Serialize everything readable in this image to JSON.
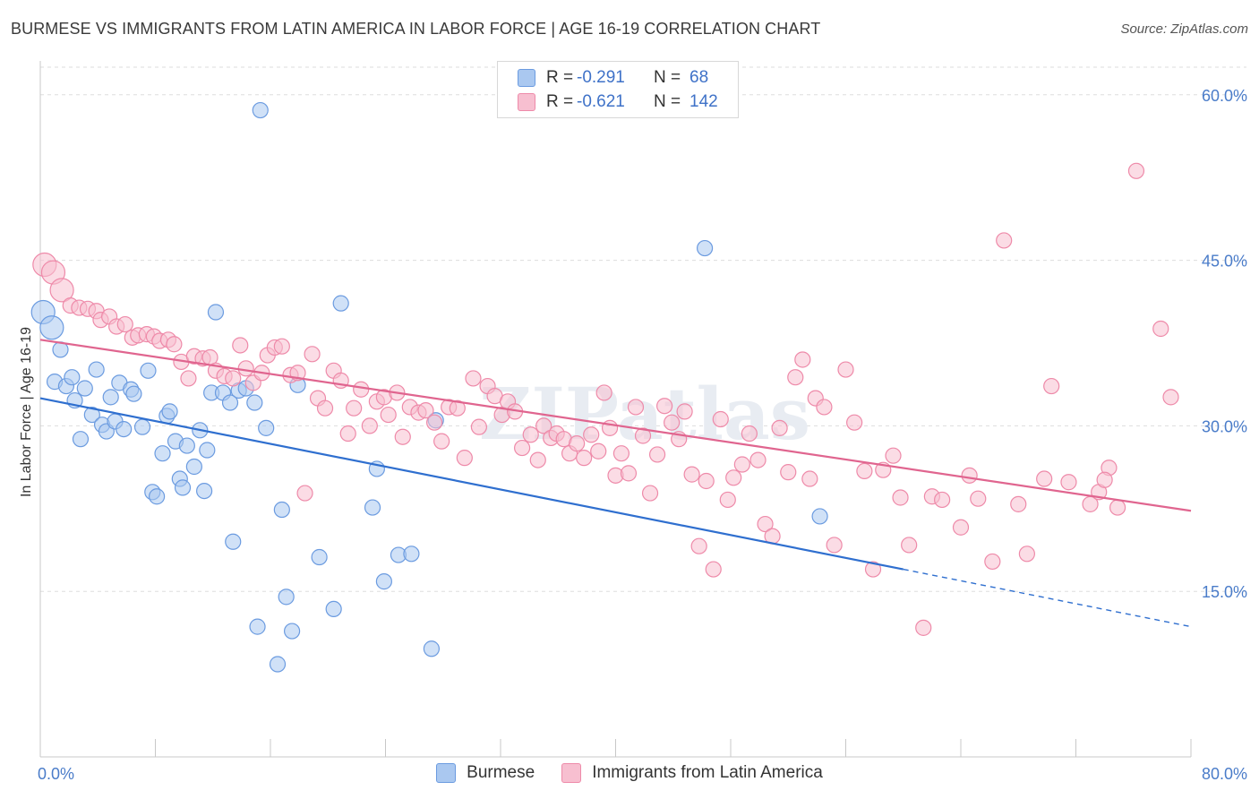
{
  "title": "BURMESE VS IMMIGRANTS FROM LATIN AMERICA IN LABOR FORCE | AGE 16-19 CORRELATION CHART",
  "source": "Source: ZipAtlas.com",
  "watermark": "ZIPatlas",
  "colors": {
    "blue_fill": "#aac8f0",
    "blue_stroke": "#6b9be0",
    "blue_line": "#2f6fcf",
    "pink_fill": "#f7bfd0",
    "pink_stroke": "#ee8aa9",
    "pink_line": "#e0658f",
    "axis_text": "#4a7cc9",
    "grid": "#dddddd"
  },
  "legend": {
    "r_label": "R =",
    "n_label": "N =",
    "entries": [
      {
        "r": "-0.291",
        "n": "68"
      },
      {
        "r": "-0.621",
        "n": "142"
      }
    ]
  },
  "chart_data": {
    "type": "scatter",
    "xlabel": "",
    "ylabel": "In Labor Force | Age 16-19",
    "xlim": [
      0,
      80
    ],
    "ylim": [
      0,
      62.5
    ],
    "x_tick_labels": [
      "0.0%",
      "80.0%"
    ],
    "y_ticks": [
      15,
      30,
      45,
      60
    ],
    "y_tick_labels": [
      "15.0%",
      "30.0%",
      "45.0%",
      "60.0%"
    ],
    "grid": "horizontal dashed",
    "legend_position": "top-center",
    "series": [
      {
        "name": "Burmese",
        "color": "blue",
        "trend": {
          "x0": 0,
          "y0": 32.5,
          "x1": 60,
          "y1": 17.0,
          "dashed_to_x": 80,
          "dashed_to_y": 11.8
        },
        "points": [
          [
            0.2,
            40.3
          ],
          [
            0.8,
            38.9
          ],
          [
            1.0,
            34.0
          ],
          [
            1.4,
            36.9
          ],
          [
            1.8,
            33.6
          ],
          [
            2.2,
            34.4
          ],
          [
            2.4,
            32.3
          ],
          [
            2.8,
            28.8
          ],
          [
            3.1,
            33.4
          ],
          [
            3.6,
            31.0
          ],
          [
            3.9,
            35.1
          ],
          [
            4.3,
            30.1
          ],
          [
            4.6,
            29.5
          ],
          [
            4.9,
            32.6
          ],
          [
            5.2,
            30.4
          ],
          [
            5.5,
            33.9
          ],
          [
            5.8,
            29.7
          ],
          [
            6.3,
            33.3
          ],
          [
            6.5,
            32.9
          ],
          [
            7.1,
            29.9
          ],
          [
            7.5,
            35.0
          ],
          [
            7.8,
            24.0
          ],
          [
            8.1,
            23.6
          ],
          [
            8.5,
            27.5
          ],
          [
            8.8,
            30.9
          ],
          [
            9.0,
            31.3
          ],
          [
            9.4,
            28.6
          ],
          [
            9.7,
            25.2
          ],
          [
            9.9,
            24.4
          ],
          [
            10.2,
            28.2
          ],
          [
            10.7,
            26.3
          ],
          [
            11.1,
            29.6
          ],
          [
            11.4,
            24.1
          ],
          [
            11.6,
            27.8
          ],
          [
            11.9,
            33.0
          ],
          [
            12.2,
            40.3
          ],
          [
            12.7,
            33.0
          ],
          [
            13.2,
            32.1
          ],
          [
            13.4,
            19.5
          ],
          [
            13.8,
            33.2
          ],
          [
            14.3,
            33.4
          ],
          [
            14.9,
            32.1
          ],
          [
            15.1,
            11.8
          ],
          [
            15.3,
            58.6
          ],
          [
            15.7,
            29.8
          ],
          [
            16.5,
            8.4
          ],
          [
            16.8,
            22.4
          ],
          [
            17.1,
            14.5
          ],
          [
            17.5,
            11.4
          ],
          [
            17.9,
            33.7
          ],
          [
            19.4,
            18.1
          ],
          [
            20.4,
            13.4
          ],
          [
            20.9,
            41.1
          ],
          [
            23.1,
            22.6
          ],
          [
            23.4,
            26.1
          ],
          [
            23.9,
            15.9
          ],
          [
            24.9,
            18.3
          ],
          [
            25.8,
            18.4
          ],
          [
            27.2,
            9.8
          ],
          [
            27.5,
            30.5
          ],
          [
            46.2,
            46.1
          ],
          [
            54.2,
            21.8
          ]
        ]
      },
      {
        "name": "Immigrants from Latin America",
        "color": "pink",
        "trend": {
          "x0": 0,
          "y0": 37.8,
          "x1": 80,
          "y1": 22.3
        },
        "points": [
          [
            0.3,
            44.6
          ],
          [
            0.9,
            43.9
          ],
          [
            1.5,
            42.3
          ],
          [
            2.1,
            40.9
          ],
          [
            2.7,
            40.7
          ],
          [
            3.3,
            40.6
          ],
          [
            3.9,
            40.4
          ],
          [
            4.2,
            39.6
          ],
          [
            4.8,
            39.9
          ],
          [
            5.3,
            39.0
          ],
          [
            5.9,
            39.2
          ],
          [
            6.4,
            38.0
          ],
          [
            6.8,
            38.2
          ],
          [
            7.4,
            38.3
          ],
          [
            7.9,
            38.1
          ],
          [
            8.3,
            37.7
          ],
          [
            8.9,
            37.8
          ],
          [
            9.3,
            37.4
          ],
          [
            9.8,
            35.8
          ],
          [
            10.3,
            34.3
          ],
          [
            10.7,
            36.3
          ],
          [
            11.3,
            36.1
          ],
          [
            11.8,
            36.2
          ],
          [
            12.2,
            35.0
          ],
          [
            12.8,
            34.5
          ],
          [
            13.4,
            34.3
          ],
          [
            13.9,
            37.3
          ],
          [
            14.3,
            35.2
          ],
          [
            14.8,
            33.9
          ],
          [
            15.4,
            34.8
          ],
          [
            15.8,
            36.4
          ],
          [
            16.3,
            37.1
          ],
          [
            16.8,
            37.2
          ],
          [
            17.4,
            34.6
          ],
          [
            17.9,
            34.8
          ],
          [
            18.4,
            23.9
          ],
          [
            18.9,
            36.5
          ],
          [
            19.3,
            32.5
          ],
          [
            19.8,
            31.6
          ],
          [
            20.4,
            35.0
          ],
          [
            20.9,
            34.1
          ],
          [
            21.4,
            29.3
          ],
          [
            21.8,
            31.6
          ],
          [
            22.3,
            33.3
          ],
          [
            22.9,
            30.0
          ],
          [
            23.4,
            32.2
          ],
          [
            23.9,
            32.6
          ],
          [
            24.2,
            31.0
          ],
          [
            24.8,
            33.0
          ],
          [
            25.2,
            29.0
          ],
          [
            25.7,
            31.7
          ],
          [
            26.3,
            31.2
          ],
          [
            26.8,
            31.4
          ],
          [
            27.4,
            30.3
          ],
          [
            27.9,
            28.6
          ],
          [
            28.4,
            31.7
          ],
          [
            29.0,
            31.6
          ],
          [
            29.5,
            27.1
          ],
          [
            30.1,
            34.3
          ],
          [
            30.5,
            29.9
          ],
          [
            31.1,
            33.6
          ],
          [
            31.6,
            32.7
          ],
          [
            32.1,
            31.0
          ],
          [
            32.5,
            32.2
          ],
          [
            33.0,
            31.3
          ],
          [
            33.5,
            28.0
          ],
          [
            34.1,
            29.2
          ],
          [
            34.6,
            26.9
          ],
          [
            35.0,
            30.0
          ],
          [
            35.5,
            28.9
          ],
          [
            35.9,
            29.3
          ],
          [
            36.4,
            28.8
          ],
          [
            36.8,
            27.5
          ],
          [
            37.3,
            28.4
          ],
          [
            37.8,
            27.1
          ],
          [
            38.3,
            29.2
          ],
          [
            38.8,
            27.7
          ],
          [
            39.2,
            33.0
          ],
          [
            39.6,
            29.8
          ],
          [
            40.0,
            25.5
          ],
          [
            40.4,
            27.5
          ],
          [
            40.9,
            25.7
          ],
          [
            41.4,
            31.7
          ],
          [
            41.9,
            29.1
          ],
          [
            42.4,
            23.9
          ],
          [
            42.9,
            27.4
          ],
          [
            43.4,
            31.8
          ],
          [
            43.9,
            30.3
          ],
          [
            44.4,
            28.8
          ],
          [
            44.8,
            31.3
          ],
          [
            45.3,
            25.6
          ],
          [
            45.8,
            19.1
          ],
          [
            46.3,
            25.0
          ],
          [
            46.8,
            17.0
          ],
          [
            47.3,
            30.6
          ],
          [
            47.8,
            23.3
          ],
          [
            48.2,
            25.3
          ],
          [
            48.8,
            26.5
          ],
          [
            49.3,
            29.3
          ],
          [
            49.9,
            26.9
          ],
          [
            50.4,
            21.1
          ],
          [
            50.9,
            20.0
          ],
          [
            51.4,
            29.8
          ],
          [
            52.0,
            25.8
          ],
          [
            52.5,
            34.4
          ],
          [
            53.0,
            36.0
          ],
          [
            53.5,
            25.2
          ],
          [
            53.9,
            32.5
          ],
          [
            54.5,
            31.7
          ],
          [
            55.2,
            19.2
          ],
          [
            56.0,
            35.1
          ],
          [
            56.6,
            30.3
          ],
          [
            57.3,
            25.9
          ],
          [
            57.9,
            17.0
          ],
          [
            58.6,
            26.0
          ],
          [
            59.3,
            27.3
          ],
          [
            59.8,
            23.5
          ],
          [
            60.4,
            19.2
          ],
          [
            61.4,
            11.7
          ],
          [
            62.0,
            23.6
          ],
          [
            62.7,
            23.3
          ],
          [
            64.0,
            20.8
          ],
          [
            64.6,
            25.5
          ],
          [
            65.2,
            23.4
          ],
          [
            66.2,
            17.7
          ],
          [
            67.0,
            46.8
          ],
          [
            68.0,
            22.9
          ],
          [
            68.6,
            18.4
          ],
          [
            69.8,
            25.2
          ],
          [
            70.3,
            33.6
          ],
          [
            71.5,
            24.9
          ],
          [
            73.0,
            22.9
          ],
          [
            73.6,
            24.0
          ],
          [
            74.3,
            26.2
          ],
          [
            74.0,
            25.1
          ],
          [
            74.9,
            22.6
          ],
          [
            76.2,
            53.1
          ],
          [
            77.9,
            38.8
          ],
          [
            78.6,
            32.6
          ]
        ]
      }
    ]
  }
}
